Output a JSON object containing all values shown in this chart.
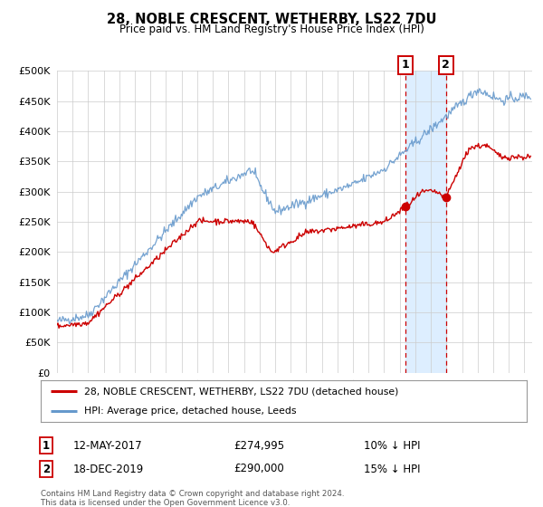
{
  "title": "28, NOBLE CRESCENT, WETHERBY, LS22 7DU",
  "subtitle": "Price paid vs. HM Land Registry's House Price Index (HPI)",
  "legend_line1": "28, NOBLE CRESCENT, WETHERBY, LS22 7DU (detached house)",
  "legend_line2": "HPI: Average price, detached house, Leeds",
  "marker1_date": "12-MAY-2017",
  "marker1_price": "£274,995",
  "marker1_hpi": "10% ↓ HPI",
  "marker1_year": 2017.36,
  "marker1_value": 274995,
  "marker2_date": "18-DEC-2019",
  "marker2_price": "£290,000",
  "marker2_hpi": "15% ↓ HPI",
  "marker2_year": 2019.96,
  "marker2_value": 290000,
  "footnote1": "Contains HM Land Registry data © Crown copyright and database right 2024.",
  "footnote2": "This data is licensed under the Open Government Licence v3.0.",
  "red_color": "#cc0000",
  "blue_color": "#6699cc",
  "background_color": "#ffffff",
  "grid_color": "#cccccc",
  "shading_color": "#ddeeff",
  "ylim": [
    0,
    500000
  ],
  "xlim_start": 1995,
  "xlim_end": 2025.5
}
